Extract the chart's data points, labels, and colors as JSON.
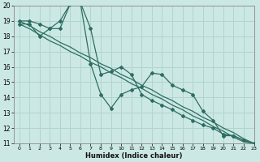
{
  "xlabel": "Humidex (Indice chaleur)",
  "xlim": [
    -0.5,
    23
  ],
  "ylim": [
    11,
    20
  ],
  "yticks": [
    11,
    12,
    13,
    14,
    15,
    16,
    17,
    18,
    19,
    20
  ],
  "xticks": [
    0,
    1,
    2,
    3,
    4,
    5,
    6,
    7,
    8,
    9,
    10,
    11,
    12,
    13,
    14,
    15,
    16,
    17,
    18,
    19,
    20,
    21,
    22,
    23
  ],
  "bg_color": "#cce8e4",
  "grid_color": "#b0d4ce",
  "line_color": "#2d6e62",
  "line1_x": [
    0,
    1,
    2,
    3,
    4,
    5,
    6,
    7,
    8,
    9,
    10,
    11,
    12,
    13,
    14,
    15,
    16,
    17,
    18,
    19,
    20,
    21,
    22,
    23
  ],
  "line1_y": [
    19.0,
    19.0,
    18.8,
    18.5,
    19.0,
    20.1,
    20.2,
    18.5,
    15.5,
    15.7,
    16.0,
    15.5,
    14.2,
    13.8,
    13.5,
    13.2,
    12.8,
    12.5,
    12.2,
    12.0,
    11.6,
    11.5,
    11.2,
    11.0
  ],
  "line2_x": [
    0,
    1,
    2,
    3,
    4,
    5,
    6,
    7,
    8,
    9,
    10,
    11,
    12,
    13,
    14,
    15,
    16,
    17,
    18,
    19,
    20,
    21,
    22,
    23
  ],
  "line2_y": [
    18.8,
    18.8,
    18.0,
    18.5,
    18.5,
    20.1,
    20.2,
    16.2,
    14.2,
    13.3,
    14.2,
    14.5,
    14.7,
    15.6,
    15.5,
    14.8,
    14.5,
    14.2,
    13.1,
    12.5,
    11.5,
    11.5,
    11.2,
    11.0
  ],
  "line3_x": [
    0,
    1,
    2,
    3,
    4,
    5,
    6,
    7,
    8,
    9,
    10,
    11,
    12,
    13,
    14,
    15,
    16,
    17,
    18,
    19,
    20,
    21,
    22,
    23
  ],
  "line3_y": [
    19.0,
    18.7,
    18.3,
    18.0,
    17.6,
    17.3,
    16.9,
    16.6,
    16.2,
    15.9,
    15.5,
    15.2,
    14.8,
    14.5,
    14.1,
    13.8,
    13.4,
    13.1,
    12.7,
    12.4,
    12.0,
    11.7,
    11.3,
    11.0
  ],
  "line4_x": [
    0,
    1,
    2,
    3,
    4,
    5,
    6,
    7,
    8,
    9,
    10,
    11,
    12,
    13,
    14,
    15,
    16,
    17,
    18,
    19,
    20,
    21,
    22,
    23
  ],
  "line4_y": [
    18.8,
    18.5,
    18.1,
    17.7,
    17.4,
    17.0,
    16.7,
    16.3,
    16.0,
    15.6,
    15.3,
    14.9,
    14.6,
    14.2,
    13.9,
    13.5,
    13.2,
    12.8,
    12.5,
    12.1,
    11.8,
    11.4,
    11.1,
    11.0
  ]
}
